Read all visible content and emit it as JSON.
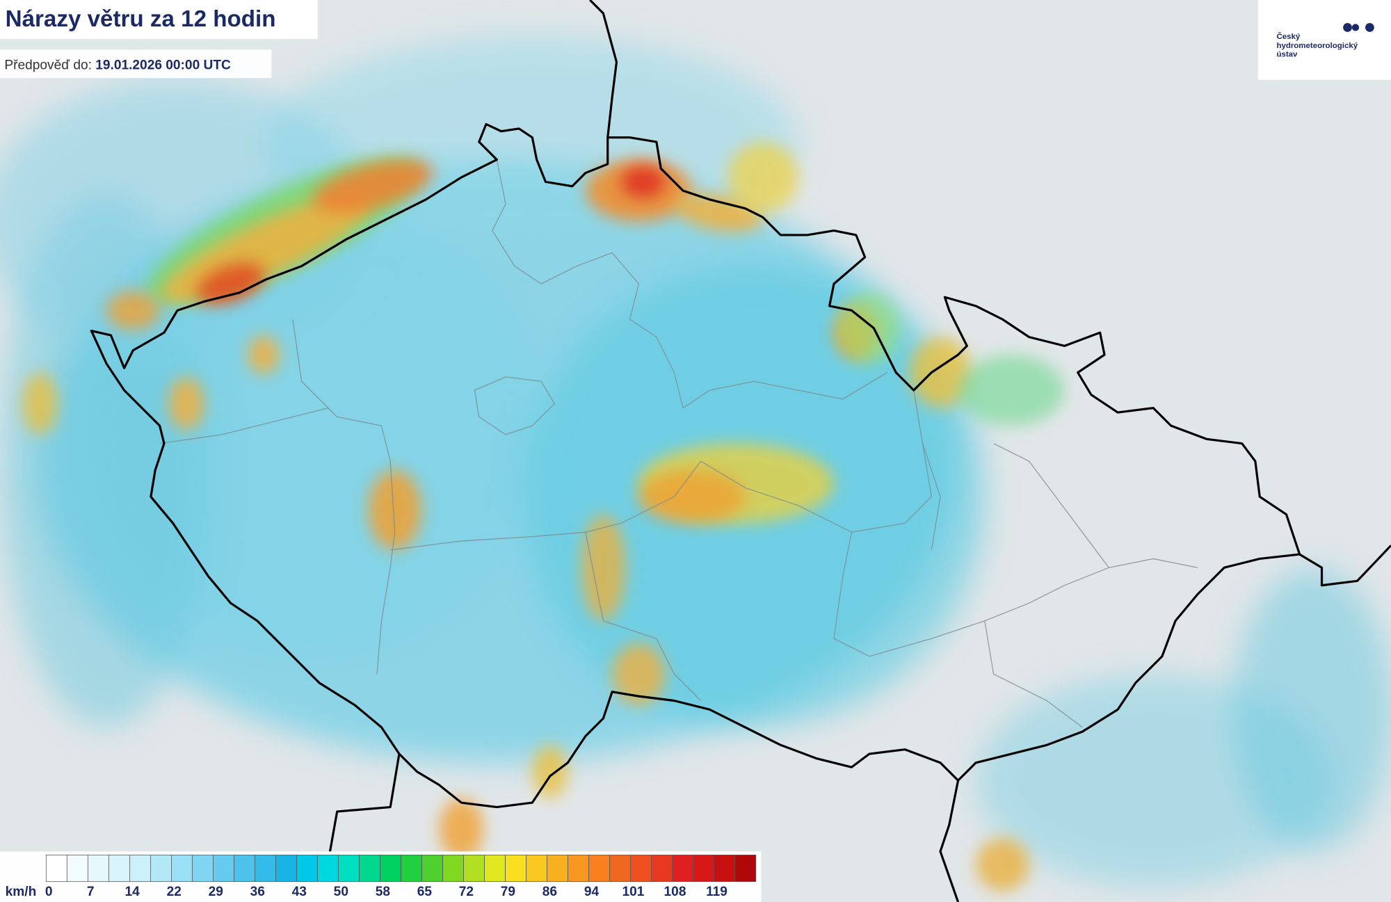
{
  "header": {
    "title": "Nárazy větru za 12 hodin",
    "forecast_label": "Předpověď do:",
    "forecast_time": "19.01.2026 00:00 UTC"
  },
  "logo": {
    "lines": [
      "Český",
      "hydrometeorologický",
      "ústav"
    ]
  },
  "legend": {
    "unit": "km/h",
    "ticks": [
      0,
      7,
      14,
      22,
      29,
      36,
      43,
      50,
      58,
      65,
      72,
      79,
      86,
      94,
      101,
      108,
      119
    ],
    "colors": [
      "#ffffff",
      "#f2fbfd",
      "#e6f8fc",
      "#d9f4fb",
      "#ccf0fa",
      "#b3e8f7",
      "#99dff5",
      "#80d6f2",
      "#66ccef",
      "#4dc3ec",
      "#33bbe9",
      "#1ab3e6",
      "#00c8e8",
      "#00d8e0",
      "#00e0c0",
      "#00d890",
      "#00d060",
      "#20d040",
      "#50d030",
      "#80d820",
      "#b0e020",
      "#e0e820",
      "#f8e020",
      "#f8c820",
      "#f8b020",
      "#f89820",
      "#f88020",
      "#f06820",
      "#f05020",
      "#e83820",
      "#e02020",
      "#d81818",
      "#c81010",
      "#b00808"
    ]
  }
}
